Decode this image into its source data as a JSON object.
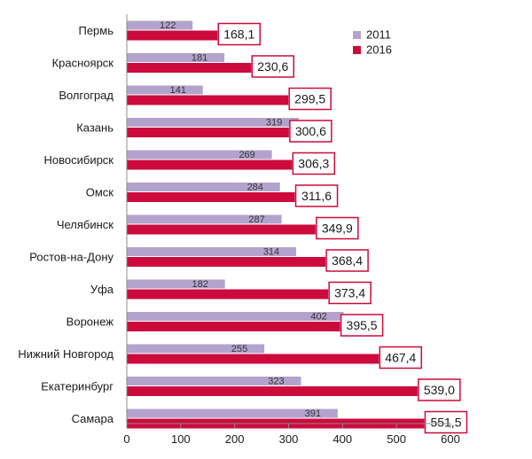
{
  "chart_data": {
    "type": "bar",
    "orientation": "horizontal",
    "categories": [
      "Пермь",
      "Красноярск",
      "Волгоград",
      "Казань",
      "Новосибирск",
      "Омск",
      "Челябинск",
      "Ростов-на-Дону",
      "Уфа",
      "Воронеж",
      "Нижний Новгород",
      "Екатеринбург",
      "Самара"
    ],
    "series": [
      {
        "name": "2011",
        "color": "#b3a3cc",
        "values": [
          122,
          181,
          141,
          319,
          269,
          284,
          287,
          314,
          182,
          402,
          255,
          323,
          391
        ],
        "labels": [
          "122",
          "181",
          "141",
          "319",
          "269",
          "284",
          "287",
          "314",
          "182",
          "402",
          "255",
          "323",
          "391"
        ]
      },
      {
        "name": "2016",
        "color": "#cc0a3c",
        "values": [
          168.1,
          230.6,
          299.5,
          300.6,
          306.3,
          311.6,
          349.9,
          368.4,
          373.4,
          395.5,
          467.4,
          539.0,
          551.5
        ],
        "labels": [
          "168,1",
          "230,6",
          "299,5",
          "300,6",
          "306,3",
          "311,6",
          "349,9",
          "368,4",
          "373,4",
          "395,5",
          "467,4",
          "539,0",
          "551,5"
        ]
      }
    ],
    "xlim": [
      0,
      600
    ],
    "xticks": [
      0,
      100,
      200,
      300,
      400,
      500,
      600
    ],
    "grid": false,
    "legend": "top-right",
    "title": "",
    "xlabel": "",
    "ylabel": ""
  }
}
